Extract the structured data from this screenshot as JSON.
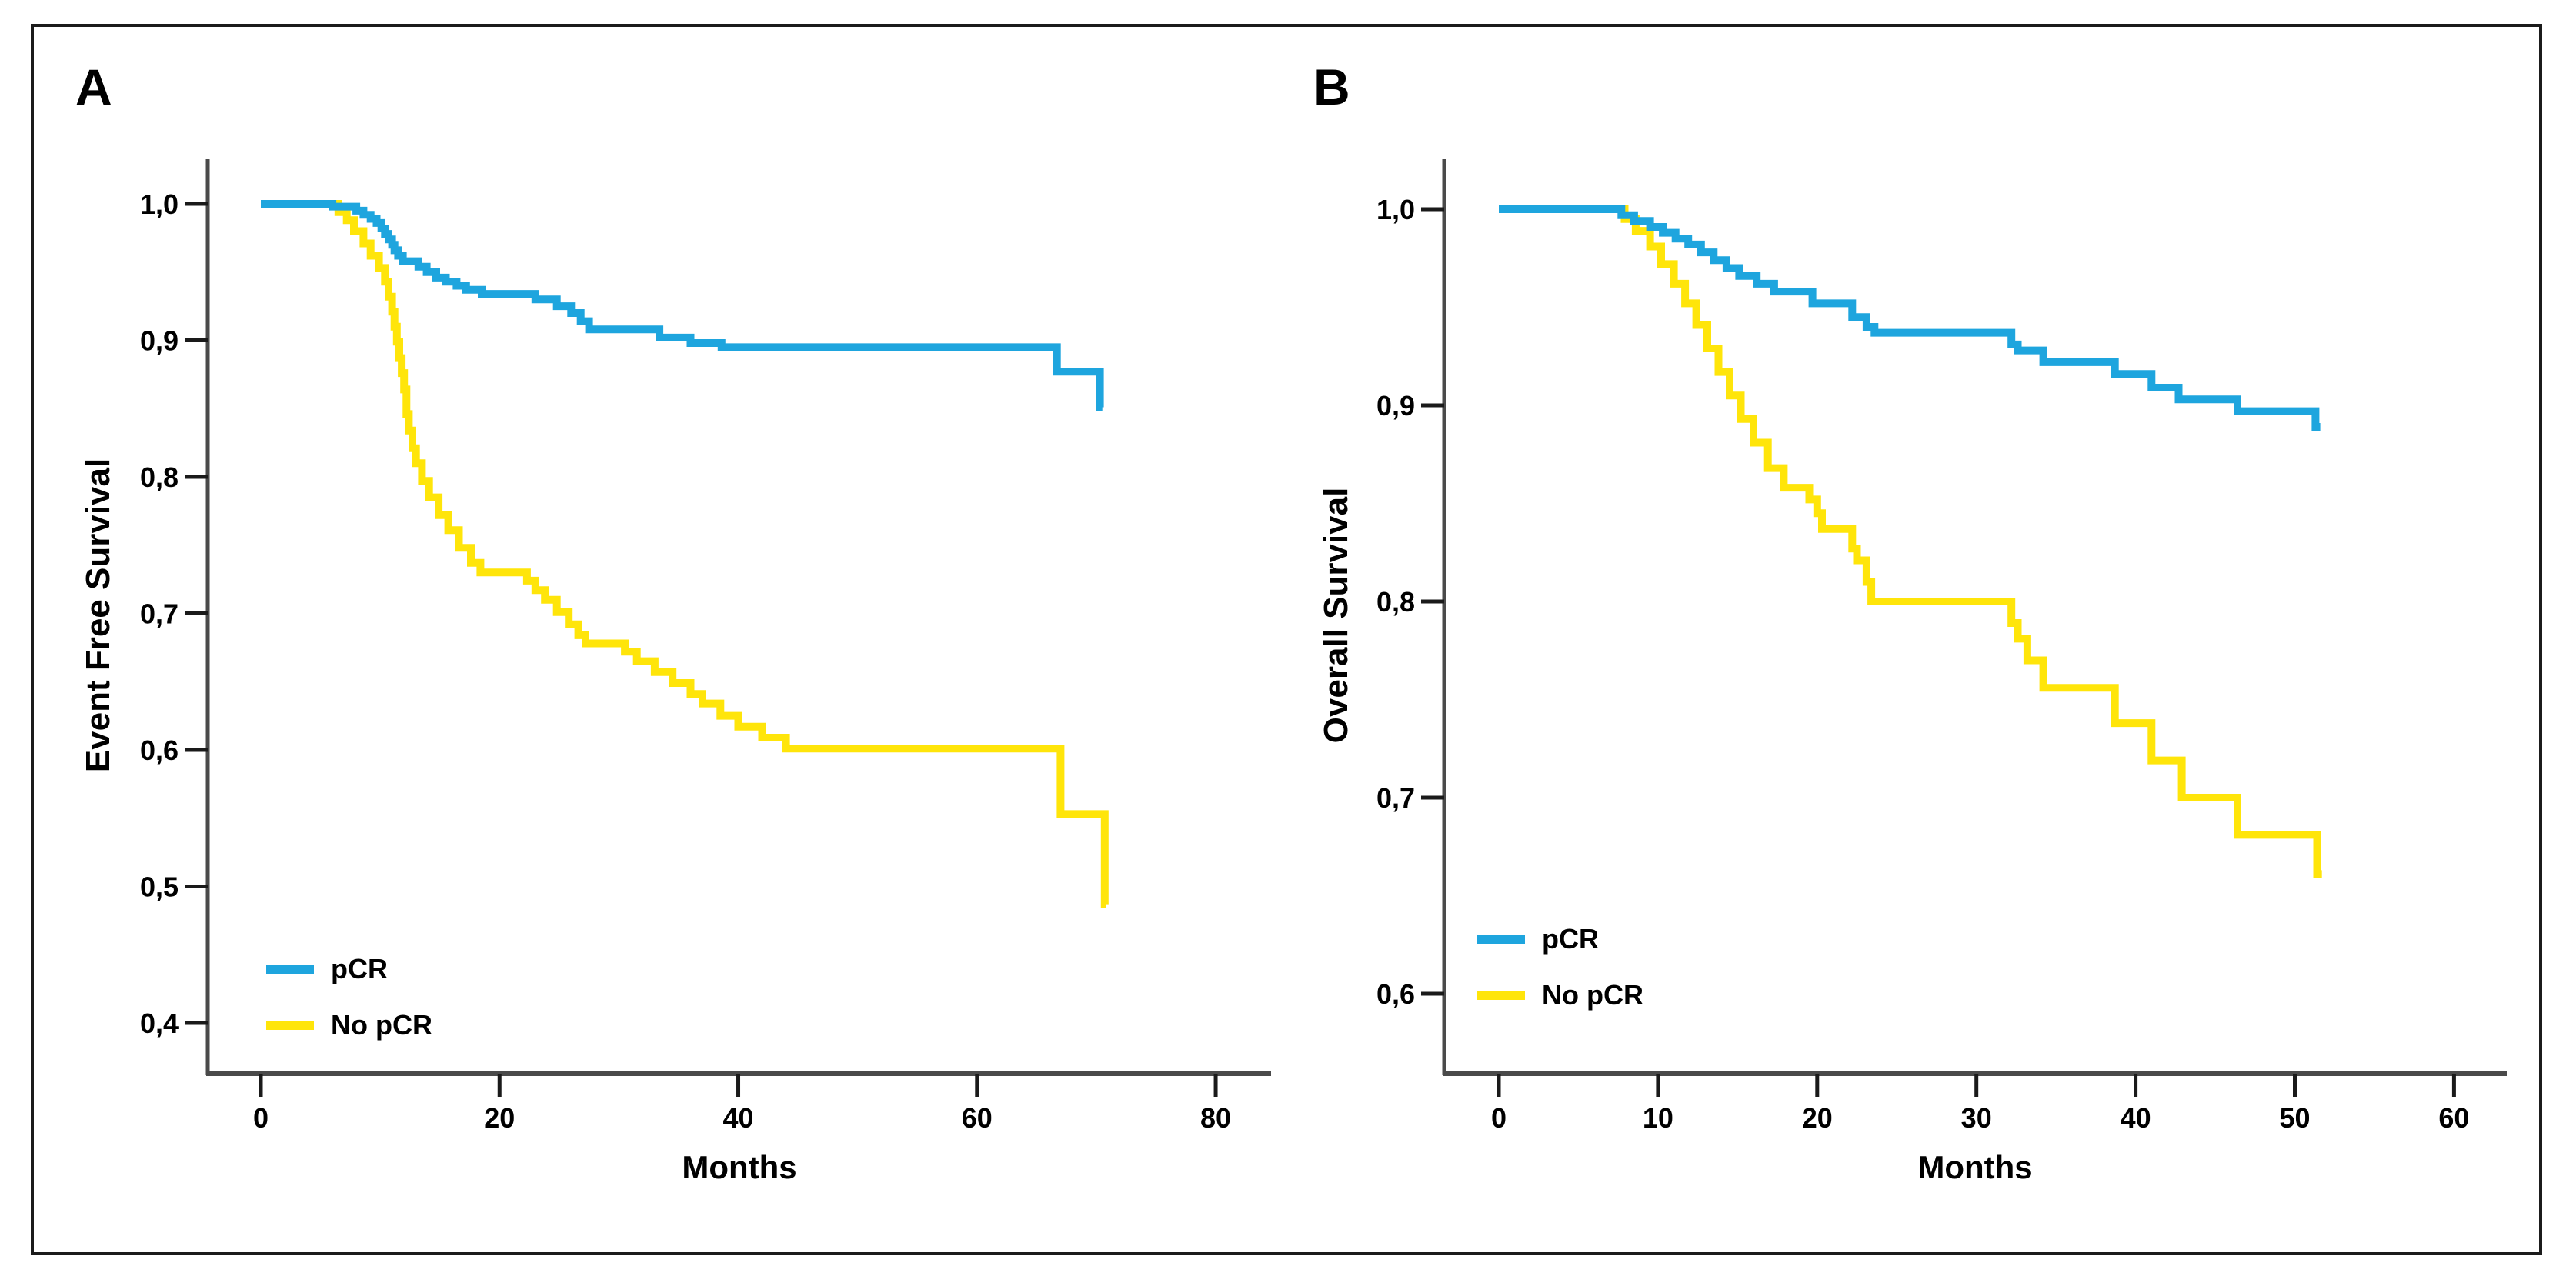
{
  "figure": {
    "type": "kaplan-meier-survival-figure",
    "background": "#ffffff",
    "border_color": "#1b1b1b",
    "axis_color": "#4a4a4a",
    "tick_color": "#1a1a1a",
    "text_color": "#000000"
  },
  "chart_data": [
    {
      "type": "line",
      "subtype": "kaplan_meier_step",
      "panel_label": "A",
      "ylabel": "Event Free Survival",
      "xlabel": "Months",
      "xlim": [
        0,
        80
      ],
      "ylim": [
        0.4,
        1.0
      ],
      "grid": false,
      "x_ticks": [
        0,
        20,
        40,
        60,
        80
      ],
      "y_ticks": [
        {
          "v": 1.0,
          "label": "1,0"
        },
        {
          "v": 0.9,
          "label": "0,9"
        },
        {
          "v": 0.8,
          "label": "0,8"
        },
        {
          "v": 0.7,
          "label": "0,7"
        },
        {
          "v": 0.6,
          "label": "0,6"
        },
        {
          "v": 0.5,
          "label": "0,5"
        },
        {
          "v": 0.4,
          "label": "0,4"
        }
      ],
      "legend": {
        "position": "lower_left",
        "entries": [
          {
            "label": "pCR",
            "color": "#1EA5DE"
          },
          {
            "label": "No pCR",
            "color": "#FFE50A"
          }
        ]
      },
      "series": [
        {
          "name": "pCR",
          "color": "#1EA5DE",
          "end_time": 70.5,
          "points": [
            [
              0,
              1.0
            ],
            [
              6.0,
              0.998
            ],
            [
              8.0,
              0.995
            ],
            [
              8.6,
              0.992
            ],
            [
              9.2,
              0.989
            ],
            [
              9.7,
              0.986
            ],
            [
              10.1,
              0.982
            ],
            [
              10.4,
              0.978
            ],
            [
              10.7,
              0.974
            ],
            [
              11.0,
              0.97
            ],
            [
              11.2,
              0.966
            ],
            [
              11.5,
              0.962
            ],
            [
              11.9,
              0.958
            ],
            [
              13.2,
              0.954
            ],
            [
              13.9,
              0.95
            ],
            [
              14.7,
              0.946
            ],
            [
              15.5,
              0.943
            ],
            [
              16.4,
              0.94
            ],
            [
              17.2,
              0.937
            ],
            [
              18.5,
              0.934
            ],
            [
              23.0,
              0.93
            ],
            [
              24.8,
              0.925
            ],
            [
              26.0,
              0.92
            ],
            [
              26.8,
              0.914
            ],
            [
              27.5,
              0.908
            ],
            [
              33.4,
              0.902
            ],
            [
              36.0,
              0.898
            ],
            [
              38.6,
              0.895
            ],
            [
              66.7,
              0.877
            ],
            [
              70.3,
              0.851
            ]
          ]
        },
        {
          "name": "No pCR",
          "color": "#FFE50A",
          "end_time": 70.8,
          "points": [
            [
              0,
              1.0
            ],
            [
              6.5,
              0.994
            ],
            [
              7.2,
              0.988
            ],
            [
              7.8,
              0.98
            ],
            [
              8.6,
              0.971
            ],
            [
              9.2,
              0.962
            ],
            [
              9.9,
              0.953
            ],
            [
              10.4,
              0.943
            ],
            [
              10.7,
              0.932
            ],
            [
              11.0,
              0.921
            ],
            [
              11.2,
              0.91
            ],
            [
              11.4,
              0.899
            ],
            [
              11.6,
              0.887
            ],
            [
              11.8,
              0.876
            ],
            [
              12.0,
              0.864
            ],
            [
              12.2,
              0.846
            ],
            [
              12.4,
              0.834
            ],
            [
              12.7,
              0.821
            ],
            [
              13.0,
              0.81
            ],
            [
              13.5,
              0.797
            ],
            [
              14.1,
              0.785
            ],
            [
              14.9,
              0.772
            ],
            [
              15.7,
              0.761
            ],
            [
              16.6,
              0.748
            ],
            [
              17.6,
              0.737
            ],
            [
              18.4,
              0.73
            ],
            [
              22.3,
              0.724
            ],
            [
              23.0,
              0.717
            ],
            [
              23.8,
              0.71
            ],
            [
              24.8,
              0.701
            ],
            [
              25.8,
              0.692
            ],
            [
              26.6,
              0.684
            ],
            [
              27.2,
              0.678
            ],
            [
              30.5,
              0.672
            ],
            [
              31.5,
              0.665
            ],
            [
              33.0,
              0.657
            ],
            [
              34.5,
              0.649
            ],
            [
              36.0,
              0.641
            ],
            [
              37.0,
              0.634
            ],
            [
              38.5,
              0.625
            ],
            [
              40.0,
              0.617
            ],
            [
              42.0,
              0.609
            ],
            [
              44.0,
              0.601
            ],
            [
              67.0,
              0.553
            ],
            [
              70.7,
              0.487
            ]
          ]
        }
      ]
    },
    {
      "type": "line",
      "subtype": "kaplan_meier_step",
      "panel_label": "B",
      "ylabel": "Overall Survival",
      "xlabel": "Months",
      "xlim": [
        0,
        60
      ],
      "ylim": [
        0.6,
        1.0
      ],
      "grid": false,
      "x_ticks": [
        0,
        10,
        20,
        30,
        40,
        50,
        60
      ],
      "y_ticks": [
        {
          "v": 1.0,
          "label": "1,0"
        },
        {
          "v": 0.9,
          "label": "0,9"
        },
        {
          "v": 0.8,
          "label": "0,8"
        },
        {
          "v": 0.7,
          "label": "0,7"
        },
        {
          "v": 0.6,
          "label": "0,6"
        }
      ],
      "legend": {
        "position": "lower_left",
        "entries": [
          {
            "label": "pCR",
            "color": "#1EA5DE"
          },
          {
            "label": "No pCR",
            "color": "#FFE50A"
          }
        ]
      },
      "series": [
        {
          "name": "pCR",
          "color": "#1EA5DE",
          "end_time": 51.6,
          "points": [
            [
              0,
              1.0
            ],
            [
              7.7,
              0.997
            ],
            [
              8.5,
              0.994
            ],
            [
              9.5,
              0.991
            ],
            [
              10.3,
              0.988
            ],
            [
              11.1,
              0.985
            ],
            [
              11.9,
              0.982
            ],
            [
              12.7,
              0.978
            ],
            [
              13.5,
              0.974
            ],
            [
              14.3,
              0.97
            ],
            [
              15.1,
              0.966
            ],
            [
              16.2,
              0.962
            ],
            [
              17.3,
              0.958
            ],
            [
              19.7,
              0.952
            ],
            [
              22.2,
              0.945
            ],
            [
              23.1,
              0.94
            ],
            [
              23.6,
              0.937
            ],
            [
              32.2,
              0.931
            ],
            [
              32.6,
              0.928
            ],
            [
              34.2,
              0.922
            ],
            [
              38.7,
              0.916
            ],
            [
              41.0,
              0.909
            ],
            [
              42.7,
              0.903
            ],
            [
              46.4,
              0.897
            ],
            [
              51.3,
              0.889
            ]
          ]
        },
        {
          "name": "No pCR",
          "color": "#FFE50A",
          "end_time": 51.7,
          "points": [
            [
              0,
              1.0
            ],
            [
              7.9,
              0.995
            ],
            [
              8.6,
              0.989
            ],
            [
              9.5,
              0.981
            ],
            [
              10.2,
              0.972
            ],
            [
              11.0,
              0.962
            ],
            [
              11.7,
              0.952
            ],
            [
              12.4,
              0.941
            ],
            [
              13.1,
              0.929
            ],
            [
              13.8,
              0.917
            ],
            [
              14.5,
              0.905
            ],
            [
              15.2,
              0.893
            ],
            [
              16.0,
              0.881
            ],
            [
              16.9,
              0.868
            ],
            [
              17.9,
              0.858
            ],
            [
              19.5,
              0.852
            ],
            [
              20.0,
              0.845
            ],
            [
              20.3,
              0.837
            ],
            [
              22.2,
              0.827
            ],
            [
              22.5,
              0.821
            ],
            [
              23.1,
              0.81
            ],
            [
              23.4,
              0.8
            ],
            [
              32.2,
              0.789
            ],
            [
              32.6,
              0.781
            ],
            [
              33.2,
              0.77
            ],
            [
              34.2,
              0.756
            ],
            [
              38.7,
              0.738
            ],
            [
              41.0,
              0.719
            ],
            [
              42.9,
              0.7
            ],
            [
              46.4,
              0.681
            ],
            [
              51.4,
              0.661
            ]
          ]
        }
      ]
    }
  ]
}
